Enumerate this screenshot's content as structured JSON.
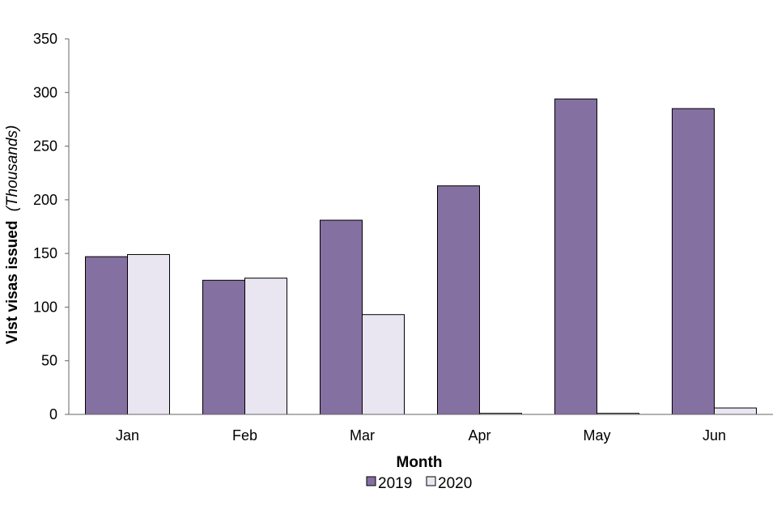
{
  "chart_data": {
    "type": "bar",
    "categories": [
      "Jan",
      "Feb",
      "Mar",
      "Apr",
      "May",
      "Jun"
    ],
    "series": [
      {
        "name": "2019",
        "color": "#8470a1",
        "values": [
          147,
          125,
          181,
          213,
          294,
          285
        ]
      },
      {
        "name": "2020",
        "color": "#e9e6f1",
        "values": [
          149,
          127,
          93,
          1,
          1,
          6
        ]
      }
    ],
    "xlabel": "Month",
    "ylabel": "Vist visas issued",
    "ylabel_unit": "(Thousands)",
    "ylim": [
      0,
      350
    ],
    "yticks": [
      0,
      50,
      100,
      150,
      200,
      250,
      300,
      350
    ],
    "grid": false,
    "legend_position": "bottom-center"
  }
}
